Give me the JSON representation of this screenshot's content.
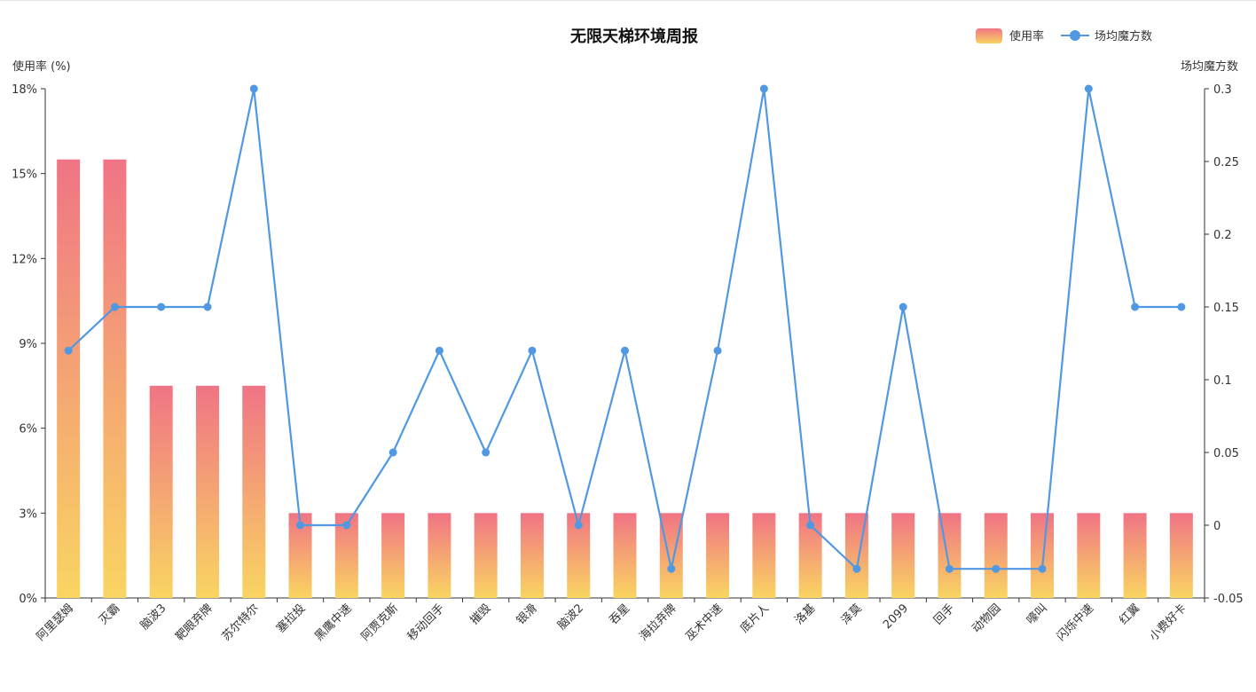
{
  "chart_data": {
    "type": "bar",
    "title": "无限天梯环境周报",
    "categories": [
      "阿里瑟姆",
      "灭霸",
      "脑波3",
      "靶眼弃牌",
      "苏尔特尔",
      "塞拉投",
      "黑鹰中速",
      "阿贾克斯",
      "移动回手",
      "摧毁",
      "银滑",
      "脑波2",
      "吞星",
      "海拉弃牌",
      "巫术中速",
      "底片人",
      "洛基",
      "泽莫",
      "2099",
      "回手",
      "动物园",
      "嚎叫",
      "闪烁中速",
      "红翼",
      "小费好卡"
    ],
    "y_left": {
      "label": "使用率 (%)",
      "ticks": [
        "0%",
        "3%",
        "6%",
        "9%",
        "12%",
        "15%",
        "18%"
      ],
      "range": [
        0,
        18
      ]
    },
    "y_right": {
      "label": "场均魔方数",
      "ticks": [
        "-0.05",
        "0",
        "0.05",
        "0.1",
        "0.15",
        "0.2",
        "0.25",
        "0.3"
      ],
      "range": [
        -0.05,
        0.3
      ]
    },
    "series": [
      {
        "name": "使用率",
        "type": "bar",
        "axis": "left",
        "values": [
          15.5,
          15.5,
          7.5,
          7.5,
          7.5,
          3,
          3,
          3,
          3,
          3,
          3,
          3,
          3,
          3,
          3,
          3,
          3,
          3,
          3,
          3,
          3,
          3,
          3,
          3,
          3
        ],
        "gradient_top": "#f07485",
        "gradient_bottom": "#f9d561"
      },
      {
        "name": "场均魔方数",
        "type": "line",
        "axis": "right",
        "values": [
          0.12,
          0.15,
          0.15,
          0.15,
          0.3,
          0,
          0,
          0.05,
          0.12,
          0.05,
          0.12,
          0,
          0.12,
          -0.03,
          0.12,
          0.3,
          0,
          -0.03,
          0.15,
          -0.03,
          -0.03,
          -0.03,
          0.3,
          0.15,
          0.15
        ],
        "color": "#5198e2"
      }
    ],
    "legend": {
      "placement": "top-right"
    },
    "grid": false
  }
}
